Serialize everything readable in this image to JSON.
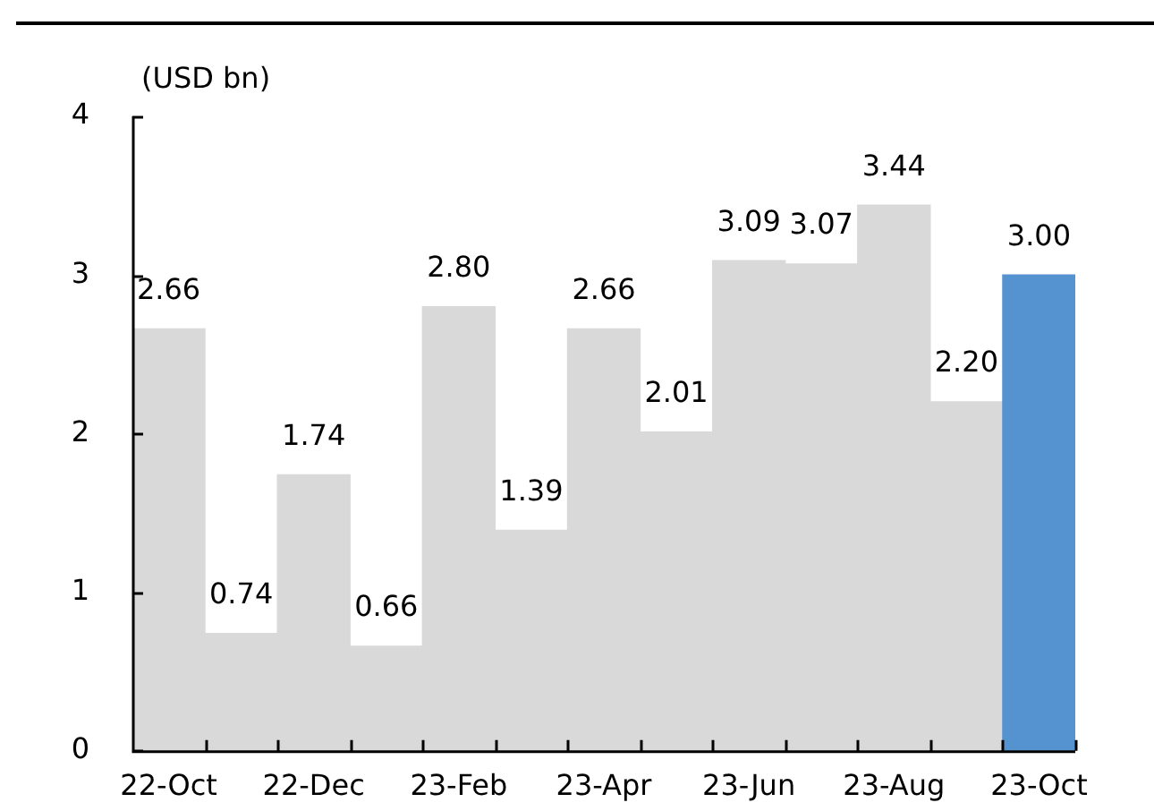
{
  "chart_data": {
    "type": "bar",
    "ylabel": "(USD bn)",
    "categories": [
      "22-Oct",
      null,
      "22-Dec",
      null,
      "23-Feb",
      null,
      "23-Apr",
      null,
      "23-Jun",
      null,
      "23-Aug",
      null,
      "23-Oct"
    ],
    "values": [
      2.66,
      0.74,
      1.74,
      0.66,
      2.8,
      1.39,
      2.66,
      2.01,
      3.09,
      3.07,
      3.44,
      2.2,
      3.0
    ],
    "value_labels": [
      "2.66",
      "0.74",
      "1.74",
      "0.66",
      "2.80",
      "1.39",
      "2.66",
      "2.01",
      "3.09",
      "3.07",
      "3.44",
      "2.20",
      "3.00"
    ],
    "colors": [
      "#d9d9d9",
      "#d9d9d9",
      "#d9d9d9",
      "#d9d9d9",
      "#d9d9d9",
      "#d9d9d9",
      "#d9d9d9",
      "#d9d9d9",
      "#d9d9d9",
      "#d9d9d9",
      "#d9d9d9",
      "#d9d9d9",
      "#5592d0"
    ],
    "ylim": [
      0,
      4
    ],
    "yticks": [
      0,
      1,
      2,
      3,
      4
    ],
    "grid": false,
    "legend": false
  }
}
